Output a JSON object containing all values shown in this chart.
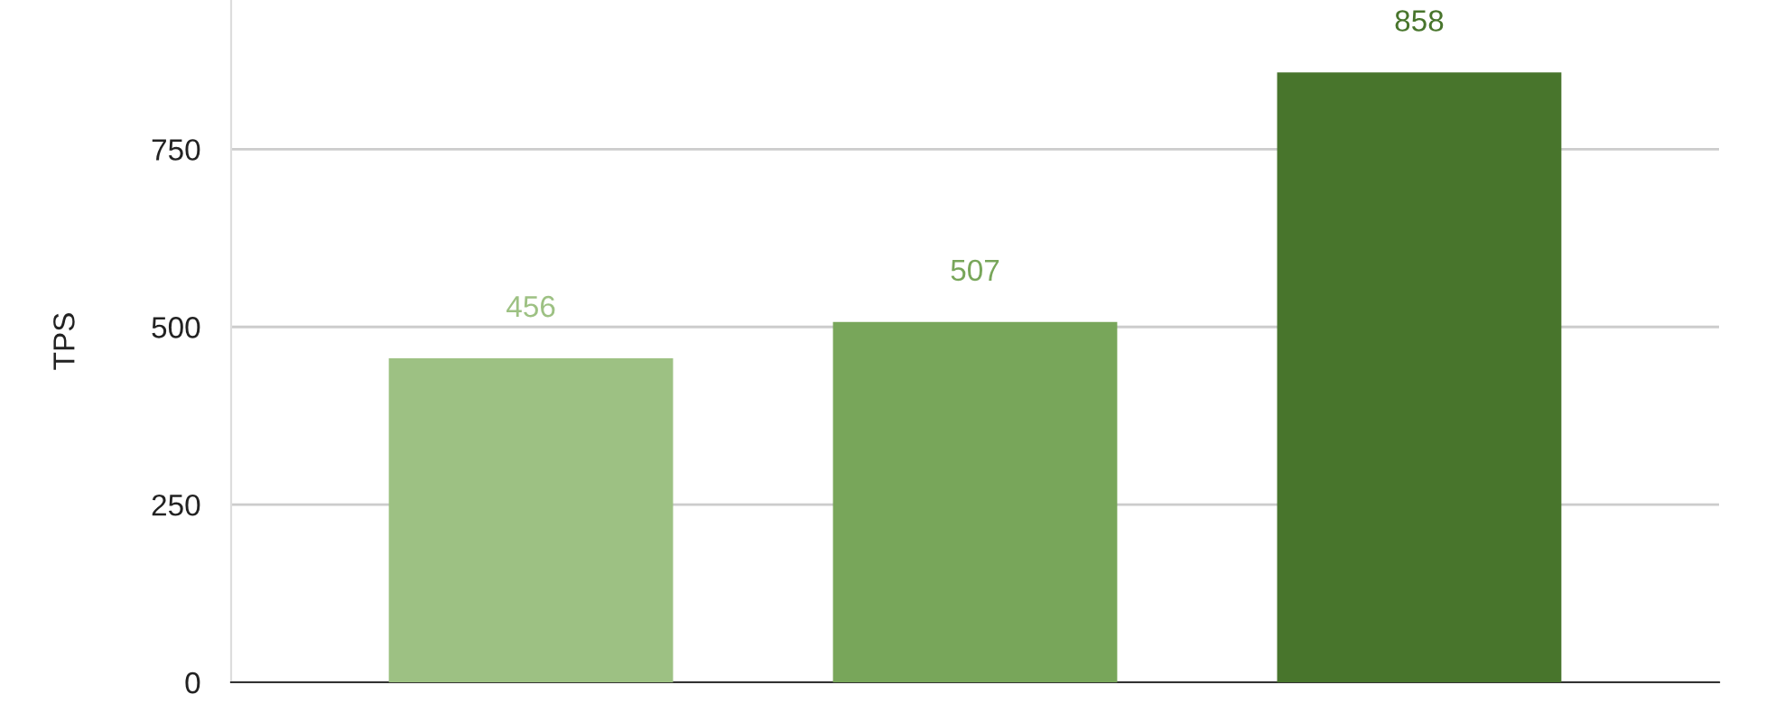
{
  "chart_data": {
    "type": "bar",
    "ylabel": "TPS",
    "categories": [
      null,
      null,
      null
    ],
    "values": [
      456,
      507,
      858
    ],
    "colors": [
      "#9dc183",
      "#78a65a",
      "#48752c"
    ],
    "ylim": [
      0,
      960
    ],
    "yticks": [
      0,
      250,
      500,
      750
    ],
    "grid": "y",
    "data_labels": true
  }
}
